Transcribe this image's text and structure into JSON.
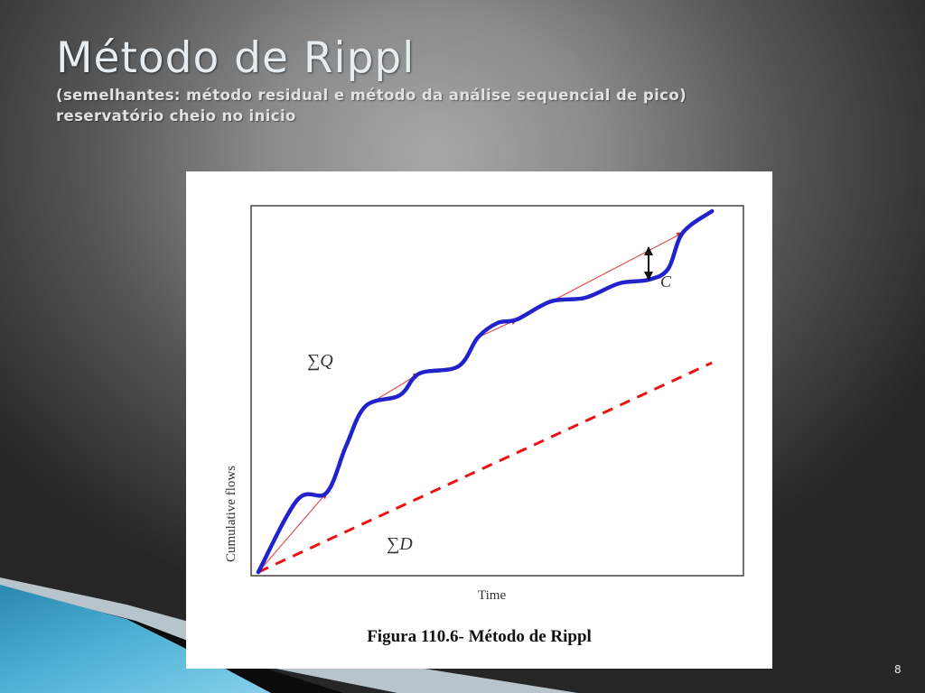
{
  "slide": {
    "title": "Método de Rippl",
    "subtitle_line1": "(semelhantes: método residual e método da análise sequencial de pico)",
    "subtitle_line2": "reservatório  cheio no inicio",
    "page_number": "8"
  },
  "figure": {
    "caption": "Figura 110.6- Método de Rippl"
  },
  "chart_data": {
    "type": "line",
    "xlabel": "Time",
    "ylabel": "Cumulative flows",
    "annotations": [
      "∑Q",
      "∑D",
      "C"
    ],
    "series": [
      {
        "name": "∑Q",
        "style": "solid",
        "color": "#2222cc",
        "points": [
          [
            0,
            0
          ],
          [
            0.08,
            0.2
          ],
          [
            0.14,
            0.22
          ],
          [
            0.18,
            0.35
          ],
          [
            0.22,
            0.46
          ],
          [
            0.29,
            0.49
          ],
          [
            0.33,
            0.55
          ],
          [
            0.41,
            0.57
          ],
          [
            0.45,
            0.65
          ],
          [
            0.49,
            0.69
          ],
          [
            0.53,
            0.7
          ],
          [
            0.6,
            0.75
          ],
          [
            0.67,
            0.76
          ],
          [
            0.74,
            0.8
          ],
          [
            0.8,
            0.81
          ],
          [
            0.84,
            0.84
          ],
          [
            0.87,
            0.94
          ],
          [
            0.93,
            1.0
          ]
        ]
      },
      {
        "name": "∑D",
        "style": "dashed",
        "color": "#ee1111",
        "points": [
          [
            0,
            0
          ],
          [
            0.93,
            0.58
          ]
        ]
      }
    ],
    "tangent_color": "#e05050",
    "grid": false
  }
}
